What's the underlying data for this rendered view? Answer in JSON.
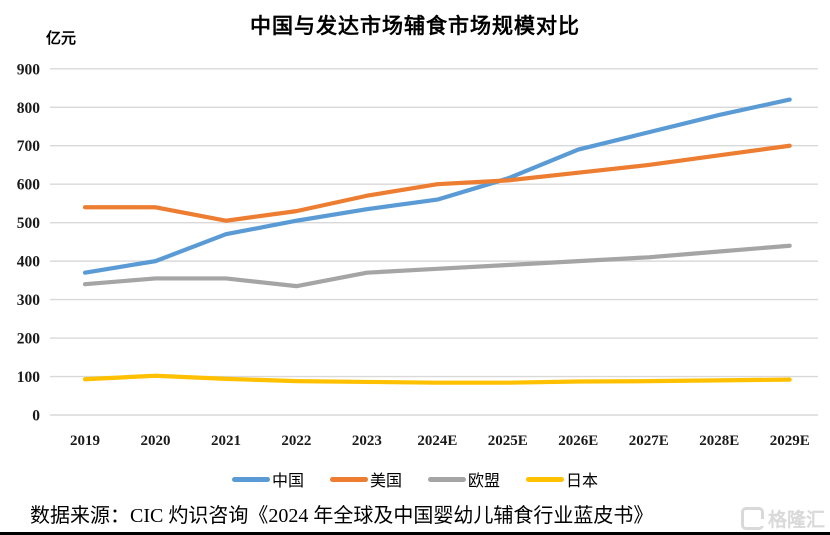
{
  "page": {
    "title": "中国与发达市场辅食市场规模对比",
    "unit_label": "亿元",
    "source": "数据来源：CIC 灼识咨询《2024 年全球及中国婴幼儿辅食行业蓝皮书》",
    "watermark": "格隆汇",
    "watermark_color": "#D9D9D9"
  },
  "chart_data": {
    "type": "line",
    "title": "中国与发达市场辅食市场规模对比",
    "ylabel": "亿元",
    "xlabel": "",
    "categories": [
      "2019",
      "2020",
      "2021",
      "2022",
      "2023",
      "2024E",
      "2025E",
      "2026E",
      "2027E",
      "2028E",
      "2029E"
    ],
    "series": [
      {
        "name": "中国",
        "color": "#5B9BD5",
        "values": [
          370,
          400,
          470,
          505,
          535,
          560,
          615,
          690,
          735,
          780,
          820
        ]
      },
      {
        "name": "美国",
        "color": "#ED7D31",
        "values": [
          540,
          540,
          505,
          530,
          570,
          600,
          610,
          630,
          650,
          675,
          700
        ]
      },
      {
        "name": "欧盟",
        "color": "#A5A5A5",
        "values": [
          340,
          355,
          355,
          335,
          370,
          380,
          390,
          400,
          410,
          425,
          440
        ]
      },
      {
        "name": "日本",
        "color": "#FFC000",
        "values": [
          93,
          102,
          94,
          88,
          86,
          84,
          84,
          87,
          88,
          90,
          92
        ]
      }
    ],
    "ylim": [
      0,
      900
    ],
    "ytick_step": 100,
    "grid": true,
    "grid_color": "#D9D9D9",
    "text_color": "#1A1A1A",
    "legend_position": "bottom"
  }
}
